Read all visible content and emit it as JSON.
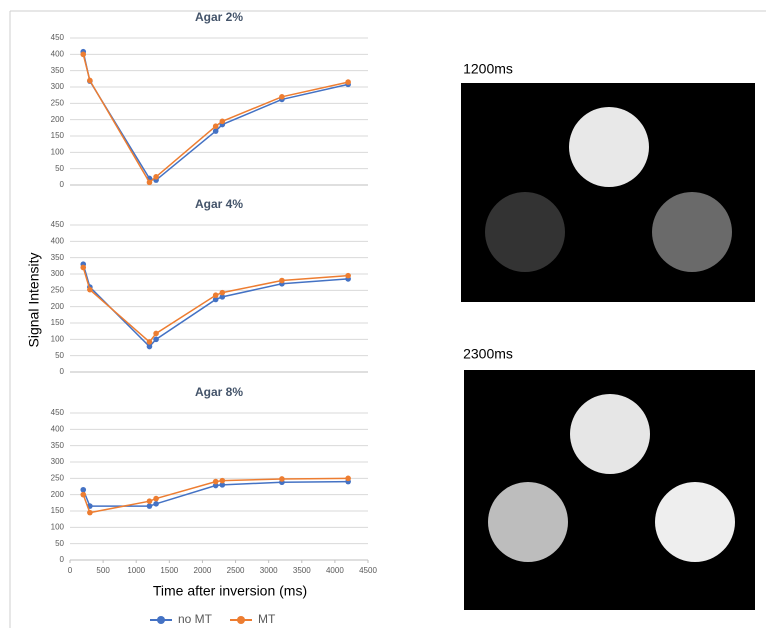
{
  "chart_data": [
    {
      "type": "line",
      "title": "Agar 2%",
      "x": [
        200,
        300,
        1200,
        1300,
        2200,
        2300,
        3200,
        4200
      ],
      "series": [
        {
          "name": "no MT",
          "color": "#4472c4",
          "values": [
            408,
            318,
            20,
            15,
            165,
            185,
            262,
            308
          ]
        },
        {
          "name": "MT",
          "color": "#ed7d31",
          "values": [
            400,
            320,
            8,
            25,
            180,
            195,
            270,
            315
          ]
        }
      ],
      "xlim": [
        0,
        4500
      ],
      "ylim": [
        0,
        450
      ],
      "yticks": [
        0,
        50,
        100,
        150,
        200,
        250,
        300,
        350,
        400,
        450
      ],
      "grid": true
    },
    {
      "type": "line",
      "title": "Agar 4%",
      "x": [
        200,
        300,
        1200,
        1300,
        2200,
        2300,
        3200,
        4200
      ],
      "series": [
        {
          "name": "no MT",
          "color": "#4472c4",
          "values": [
            330,
            260,
            78,
            100,
            222,
            230,
            270,
            285
          ]
        },
        {
          "name": "MT",
          "color": "#ed7d31",
          "values": [
            320,
            252,
            92,
            118,
            235,
            243,
            280,
            295
          ]
        }
      ],
      "xlim": [
        0,
        4500
      ],
      "ylim": [
        0,
        450
      ],
      "yticks": [
        0,
        50,
        100,
        150,
        200,
        250,
        300,
        350,
        400,
        450
      ],
      "grid": true
    },
    {
      "type": "line",
      "title": "Agar 8%",
      "x": [
        200,
        300,
        1200,
        1300,
        2200,
        2300,
        3200,
        4200
      ],
      "series": [
        {
          "name": "no MT",
          "color": "#4472c4",
          "values": [
            215,
            165,
            165,
            172,
            228,
            230,
            238,
            240
          ]
        },
        {
          "name": "MT",
          "color": "#ed7d31",
          "values": [
            200,
            145,
            180,
            188,
            240,
            243,
            248,
            250
          ]
        }
      ],
      "xlim": [
        0,
        4500
      ],
      "xticks": [
        0,
        500,
        1000,
        1500,
        2000,
        2500,
        3000,
        3500,
        4000,
        4500
      ],
      "ylim": [
        0,
        450
      ],
      "yticks": [
        0,
        50,
        100,
        150,
        200,
        250,
        300,
        350,
        400,
        450
      ],
      "grid": true
    }
  ],
  "axis_labels": {
    "y": "Signal Intensity",
    "x": "Time after inversion (ms)"
  },
  "images": [
    {
      "title": "1200ms"
    },
    {
      "title": "2300ms"
    }
  ]
}
